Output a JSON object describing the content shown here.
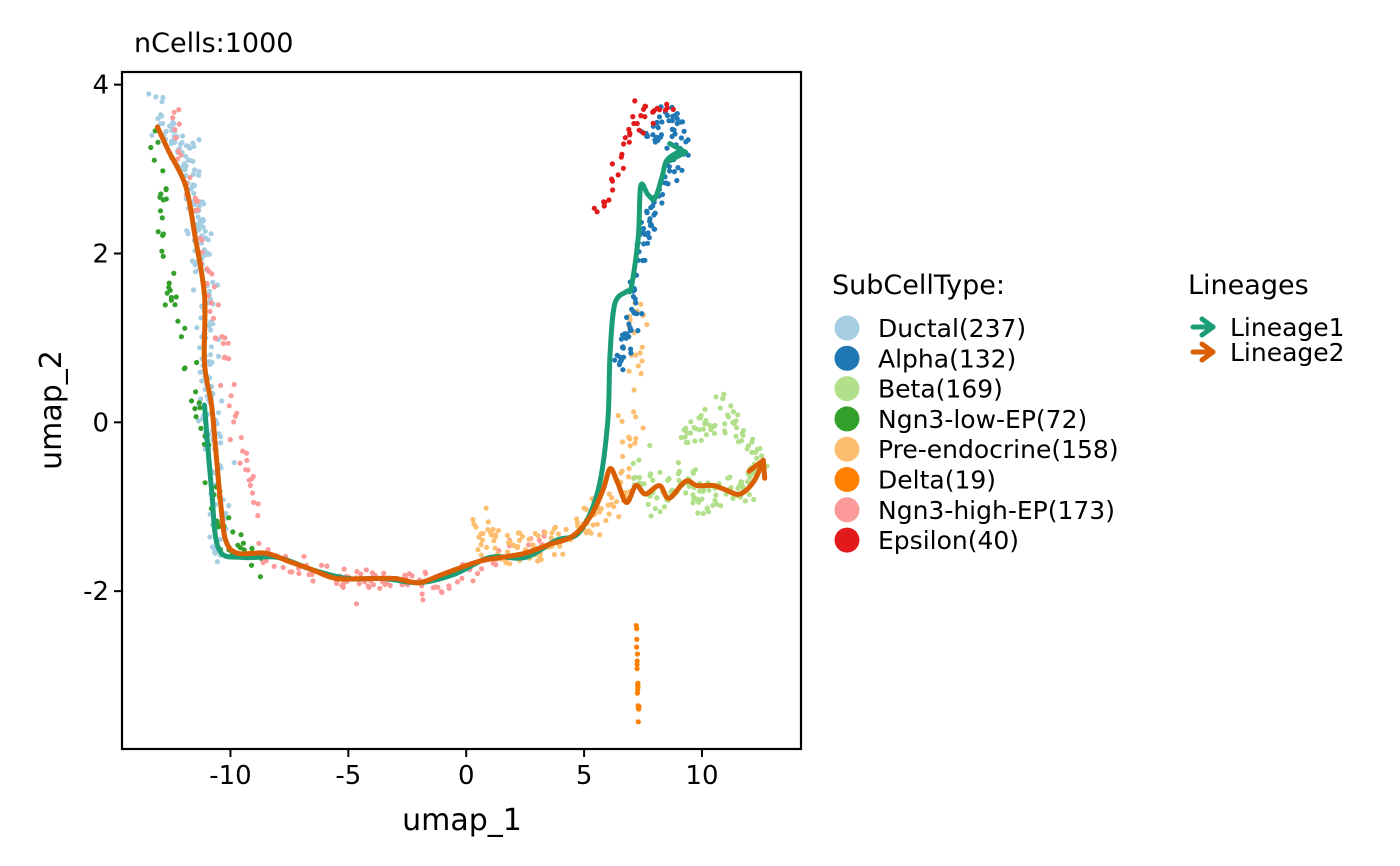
{
  "chart_data": {
    "type": "scatter",
    "title": "nCells:1000",
    "xlabel": "umap_1",
    "ylabel": "umap_2",
    "xlim": [
      -14.6,
      14.2
    ],
    "ylim": [
      -3.87,
      4.15
    ],
    "x_ticks": [
      -10,
      -5,
      0,
      5,
      10
    ],
    "x_tick_labels": [
      "-10",
      "-5",
      "0",
      "5",
      "10"
    ],
    "y_ticks": [
      -2,
      0,
      2,
      4
    ],
    "y_tick_labels": [
      "-2",
      "0",
      "2",
      "4"
    ],
    "grid": false,
    "legend_placement": "right",
    "legend": {
      "title": "SubCellType:",
      "entries": [
        {
          "label": "Ductal(237)",
          "color": "#A6CEE3"
        },
        {
          "label": "Alpha(132)",
          "color": "#1F78B4"
        },
        {
          "label": "Beta(169)",
          "color": "#B2DF8A"
        },
        {
          "label": "Ngn3-low-EP(72)",
          "color": "#33A02C"
        },
        {
          "label": "Pre-endocrine(158)",
          "color": "#FDBF6F"
        },
        {
          "label": "Delta(19)",
          "color": "#FF7F00"
        },
        {
          "label": "Ngn3-high-EP(173)",
          "color": "#FB9A99"
        },
        {
          "label": "Epsilon(40)",
          "color": "#E31A1C"
        }
      ]
    },
    "lineage_legend": {
      "title": "Lineages",
      "entries": [
        {
          "label": "Lineage1",
          "color": "#1B9E77"
        },
        {
          "label": "Lineage2",
          "color": "#D95F02"
        }
      ]
    },
    "clusters": [
      {
        "name": "Ductal(237)",
        "color": "#A6CEE3",
        "count": 237,
        "path": [
          [
            -13.1,
            3.6
          ],
          [
            -12.5,
            3.4
          ],
          [
            -11.8,
            3.1
          ],
          [
            -11.5,
            2.6
          ],
          [
            -11.2,
            2.0
          ],
          [
            -11.0,
            1.4
          ],
          [
            -11.1,
            0.8
          ],
          [
            -11.0,
            0.2
          ],
          [
            -10.8,
            -0.3
          ],
          [
            -10.5,
            -0.9
          ],
          [
            -10.6,
            -1.3
          ],
          [
            -10.3,
            -1.7
          ]
        ],
        "spread": 0.55
      },
      {
        "name": "Ngn3-low-EP(72)",
        "color": "#33A02C",
        "count": 72,
        "path": [
          [
            -13.0,
            3.4
          ],
          [
            -12.8,
            2.6
          ],
          [
            -12.6,
            1.6
          ],
          [
            -11.0,
            -0.3
          ],
          [
            -10.5,
            -1.2
          ],
          [
            -9.8,
            -1.4
          ],
          [
            -8.8,
            -1.6
          ],
          [
            -8.6,
            -1.8
          ]
        ],
        "spread": 0.4
      },
      {
        "name": "Ngn3-high-EP(173)",
        "color": "#FB9A99",
        "count": 173,
        "path": [
          [
            -12.5,
            3.75
          ],
          [
            -8.5,
            -1.6
          ],
          [
            -7.0,
            -1.7
          ],
          [
            -5.5,
            -1.85
          ],
          [
            -4.0,
            -1.85
          ],
          [
            -2.5,
            -1.9
          ],
          [
            -1.0,
            -1.95
          ],
          [
            0.5,
            -1.75
          ],
          [
            2.0,
            -1.55
          ],
          [
            3.3,
            -1.4
          ]
        ],
        "spread": 0.32
      },
      {
        "name": "Pre-endocrine(158)",
        "color": "#FDBF6F",
        "count": 158,
        "path": [
          [
            0.5,
            -1.3
          ],
          [
            2.0,
            -1.5
          ],
          [
            3.5,
            -1.5
          ],
          [
            4.8,
            -1.3
          ],
          [
            5.8,
            -1.0
          ],
          [
            6.8,
            -0.7
          ],
          [
            7.0,
            0.2
          ],
          [
            7.2,
            1.0
          ],
          [
            7.3,
            1.6
          ]
        ],
        "spread": 0.45
      },
      {
        "name": "Beta(169)",
        "color": "#B2DF8A",
        "count": 169,
        "path": [
          [
            7.2,
            -0.6
          ],
          [
            8.2,
            -0.9
          ],
          [
            9.2,
            -0.6
          ],
          [
            10.2,
            -1.0
          ],
          [
            11.0,
            -0.7
          ],
          [
            11.8,
            -0.8
          ],
          [
            12.5,
            -0.5
          ],
          [
            11.0,
            0.1
          ],
          [
            9.0,
            -0.2
          ]
        ],
        "spread": 0.45
      },
      {
        "name": "Alpha(132)",
        "color": "#1F78B4",
        "count": 132,
        "path": [
          [
            6.5,
            0.6
          ],
          [
            7.0,
            1.2
          ],
          [
            7.3,
            1.9
          ],
          [
            7.8,
            2.4
          ],
          [
            8.3,
            2.7
          ],
          [
            8.8,
            3.0
          ],
          [
            9.2,
            3.4
          ],
          [
            8.4,
            3.6
          ],
          [
            7.6,
            3.3
          ]
        ],
        "spread": 0.4
      },
      {
        "name": "Epsilon(40)",
        "color": "#E31A1C",
        "count": 40,
        "path": [
          [
            5.5,
            2.4
          ],
          [
            6.2,
            2.8
          ],
          [
            6.7,
            3.3
          ],
          [
            7.0,
            3.6
          ],
          [
            8.5,
            3.7
          ]
        ],
        "spread": 0.3
      },
      {
        "name": "Delta(19)",
        "color": "#FF7F00",
        "count": 19,
        "path": [
          [
            7.2,
            -2.2
          ],
          [
            7.25,
            -2.8
          ],
          [
            7.3,
            -3.4
          ],
          [
            7.3,
            -3.55
          ]
        ],
        "spread": 0.03
      }
    ],
    "lineages": [
      {
        "name": "Lineage1",
        "color": "#1B9E77",
        "points": [
          [
            -11.1,
            0.2
          ],
          [
            -10.8,
            -0.8
          ],
          [
            -10.5,
            -1.5
          ],
          [
            -9.5,
            -1.6
          ],
          [
            -8.0,
            -1.6
          ],
          [
            -6.5,
            -1.75
          ],
          [
            -5.0,
            -1.85
          ],
          [
            -3.5,
            -1.85
          ],
          [
            -2.0,
            -1.9
          ],
          [
            -0.5,
            -1.8
          ],
          [
            1.0,
            -1.6
          ],
          [
            2.5,
            -1.6
          ],
          [
            3.8,
            -1.4
          ],
          [
            4.8,
            -1.3
          ],
          [
            5.6,
            -0.8
          ],
          [
            6.0,
            0.0
          ],
          [
            6.1,
            0.8
          ],
          [
            6.3,
            1.4
          ],
          [
            6.8,
            1.55
          ],
          [
            7.0,
            1.6
          ],
          [
            7.3,
            2.2
          ],
          [
            7.4,
            2.8
          ],
          [
            7.7,
            2.7
          ],
          [
            8.0,
            2.65
          ],
          [
            8.3,
            2.9
          ],
          [
            8.5,
            3.1
          ],
          [
            9.0,
            3.2
          ],
          [
            9.3,
            3.2
          ]
        ]
      },
      {
        "name": "Lineage2",
        "color": "#D95F02",
        "points": [
          [
            -13.1,
            3.5
          ],
          [
            -12.6,
            3.2
          ],
          [
            -11.9,
            2.8
          ],
          [
            -11.5,
            2.2
          ],
          [
            -11.1,
            1.5
          ],
          [
            -11.1,
            0.7
          ],
          [
            -10.8,
            0.2
          ],
          [
            -10.6,
            -0.4
          ],
          [
            -10.4,
            -1.0
          ],
          [
            -10.2,
            -1.4
          ],
          [
            -9.7,
            -1.55
          ],
          [
            -8.5,
            -1.55
          ],
          [
            -7.5,
            -1.65
          ],
          [
            -6.5,
            -1.75
          ],
          [
            -5.5,
            -1.85
          ],
          [
            -4.0,
            -1.85
          ],
          [
            -3.0,
            -1.85
          ],
          [
            -2.0,
            -1.9
          ],
          [
            -1.0,
            -1.8
          ],
          [
            0.5,
            -1.65
          ],
          [
            1.5,
            -1.6
          ],
          [
            2.5,
            -1.55
          ],
          [
            3.5,
            -1.45
          ],
          [
            4.5,
            -1.35
          ],
          [
            5.3,
            -1.1
          ],
          [
            5.8,
            -0.8
          ],
          [
            6.1,
            -0.55
          ],
          [
            6.4,
            -0.7
          ],
          [
            6.8,
            -0.95
          ],
          [
            7.2,
            -0.75
          ],
          [
            7.6,
            -0.85
          ],
          [
            8.2,
            -0.75
          ],
          [
            8.6,
            -0.9
          ],
          [
            9.3,
            -0.7
          ],
          [
            9.8,
            -0.75
          ],
          [
            10.5,
            -0.75
          ],
          [
            11.0,
            -0.8
          ],
          [
            11.6,
            -0.85
          ],
          [
            12.2,
            -0.7
          ],
          [
            12.6,
            -0.45
          ]
        ]
      }
    ]
  }
}
